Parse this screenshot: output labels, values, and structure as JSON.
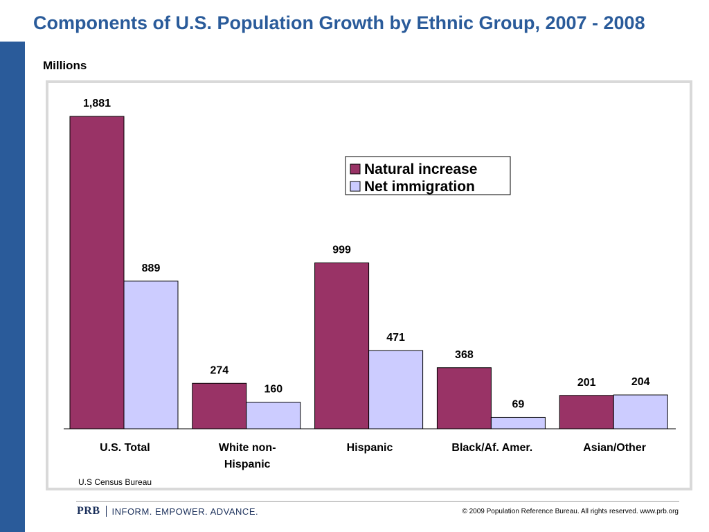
{
  "slide": {
    "title": "Components of U.S. Population Growth by Ethnic Group, 2007 - 2008",
    "units_label": "Millions",
    "source": "U.S Census Bureau"
  },
  "footer": {
    "logo": "PRB",
    "tagline": "INFORM. EMPOWER. ADVANCE.",
    "copyright": "© 2009 Population Reference Bureau. All rights reserved. www.prb.org"
  },
  "colors": {
    "title": "#2a5b9a",
    "side_bar": "#2a5b9a",
    "natural_increase": "#993366",
    "net_immigration": "#ccccff"
  },
  "chart_data": {
    "type": "bar",
    "title": "",
    "xlabel": "",
    "ylabel": "",
    "categories": [
      "U.S. Total",
      "White non-Hispanic",
      "Hispanic",
      "Black/Af. Amer.",
      "Asian/Other"
    ],
    "category_lines": [
      [
        "U.S. Total"
      ],
      [
        "White non-",
        "Hispanic"
      ],
      [
        "Hispanic"
      ],
      [
        "Black/Af. Amer."
      ],
      [
        "Asian/Other"
      ]
    ],
    "series": [
      {
        "name": "Natural increase",
        "values": [
          1881,
          274,
          999,
          368,
          201
        ],
        "labels": [
          "1,881",
          "274",
          "999",
          "368",
          "201"
        ]
      },
      {
        "name": "Net immigration",
        "values": [
          889,
          160,
          471,
          69,
          204
        ],
        "labels": [
          "889",
          "160",
          "471",
          "69",
          "204"
        ]
      }
    ],
    "ylim": [
      0,
      1881
    ],
    "grid": false,
    "legend_position": "upper-right"
  }
}
